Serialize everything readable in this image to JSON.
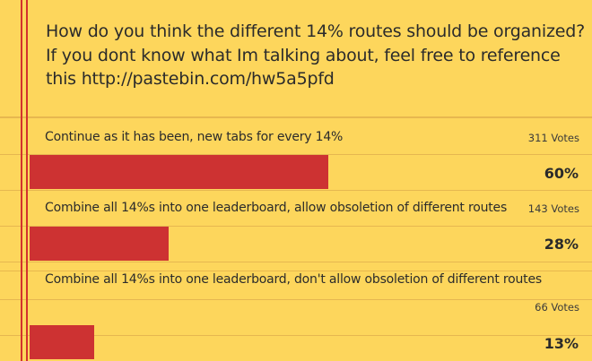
{
  "poll": {
    "question_lines": [
      "How do you think the different 14% routes should be organized?",
      "If you dont know what Im talking about, feel free to reference",
      "this  http://pastebin.com/hw5a5pfd"
    ],
    "options": [
      {
        "label": "Continue as it has been, new tabs for every 14%",
        "votes": "311 Votes",
        "percent_text": "60%",
        "share": 0.6
      },
      {
        "label": "Combine all 14%s into one leaderboard, allow obsoletion of different routes",
        "votes": "143 Votes",
        "percent_text": "28%",
        "share": 0.28
      },
      {
        "label": "Combine all 14%s into one leaderboard, don't allow obsoletion of different routes",
        "votes": "66 Votes",
        "percent_text": "13%",
        "share": 0.13
      }
    ]
  },
  "colors": {
    "paper": "#fdd65c",
    "bar": "#cd3232",
    "margin_line": "#d3322e",
    "rule_line": "#e6b750"
  }
}
